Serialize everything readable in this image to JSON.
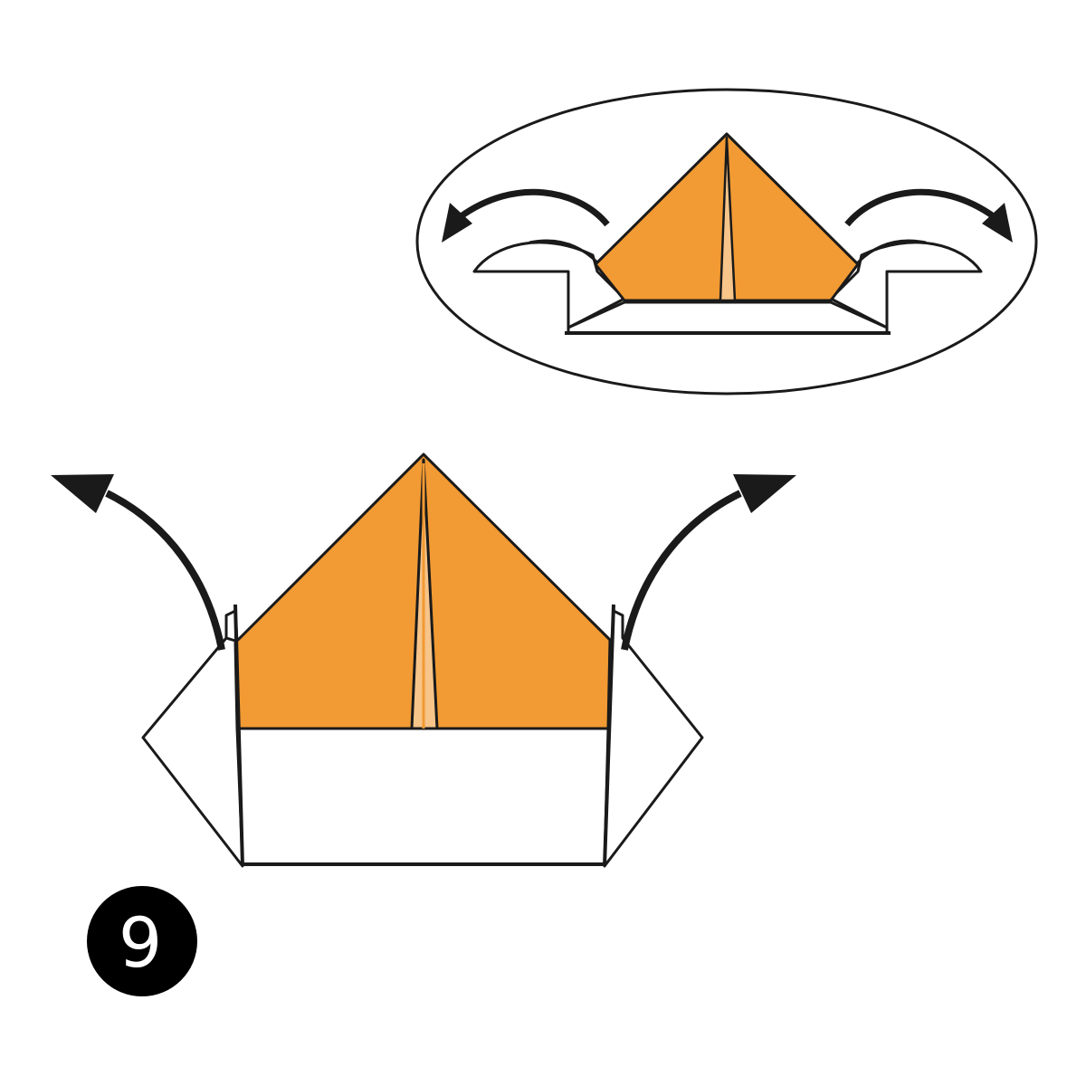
{
  "step": {
    "number": "9"
  },
  "colors": {
    "paper_front": "#F29A33",
    "paper_back": "#FFFFFF",
    "crease_highlight": "#F7C489",
    "outline": "#1A1A1A",
    "badge": "#000000",
    "badge_text": "#FFFFFF"
  },
  "icons": {
    "left_arrow": "curved-arrow-up-left-icon",
    "right_arrow": "curved-arrow-up-right-icon",
    "inset_left_arrow": "curved-arrow-left-icon",
    "inset_right_arrow": "curved-arrow-right-icon"
  }
}
